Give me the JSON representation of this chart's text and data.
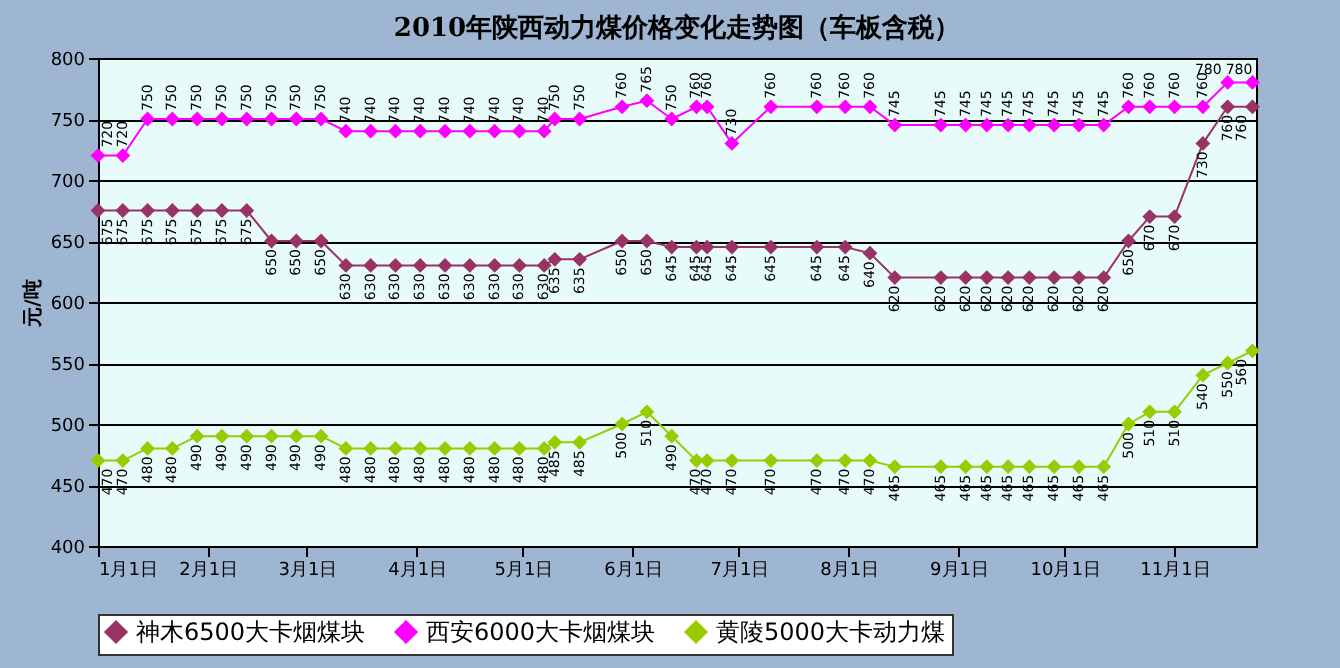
{
  "chart_data": {
    "type": "line",
    "title": "2010年陕西动力煤价格变化走势图（车板含税）",
    "ylabel": "元/吨",
    "x": [
      "2010-01-01",
      "2010-01-08",
      "2010-01-15",
      "2010-01-22",
      "2010-01-29",
      "2010-02-05",
      "2010-02-12",
      "2010-02-19",
      "2010-02-26",
      "2010-03-05",
      "2010-03-12",
      "2010-03-19",
      "2010-03-26",
      "2010-04-02",
      "2010-04-09",
      "2010-04-16",
      "2010-04-23",
      "2010-04-30",
      "2010-05-07",
      "2010-05-10",
      "2010-05-17",
      "2010-05-29",
      "2010-06-05",
      "2010-06-12",
      "2010-06-19",
      "2010-06-22",
      "2010-06-29",
      "2010-07-10",
      "2010-07-23",
      "2010-07-31",
      "2010-08-07",
      "2010-08-14",
      "2010-08-27",
      "2010-09-03",
      "2010-09-09",
      "2010-09-15",
      "2010-09-21",
      "2010-09-28",
      "2010-10-05",
      "2010-10-12",
      "2010-10-19",
      "2010-10-25",
      "2010-11-01",
      "2010-11-09",
      "2010-11-16",
      "2010-11-23"
    ],
    "series": [
      {
        "name": "神木6500大卡烟煤块",
        "color": "#993366",
        "values": [
          675,
          675,
          675,
          675,
          675,
          675,
          675,
          650,
          650,
          650,
          630,
          630,
          630,
          630,
          630,
          630,
          630,
          630,
          630,
          635,
          635,
          650,
          650,
          645,
          645,
          645,
          645,
          645,
          645,
          645,
          640,
          620,
          620,
          620,
          620,
          620,
          620,
          620,
          620,
          620,
          650,
          670,
          670,
          730,
          760,
          760
        ]
      },
      {
        "name": "西安6000大卡烟煤块",
        "color": "#ff00ff",
        "values": [
          720,
          720,
          750,
          750,
          750,
          750,
          750,
          750,
          750,
          750,
          740,
          740,
          740,
          740,
          740,
          740,
          740,
          740,
          740,
          750,
          750,
          760,
          765,
          750,
          760,
          760,
          730,
          760,
          760,
          760,
          760,
          745,
          745,
          745,
          745,
          745,
          745,
          745,
          745,
          745,
          760,
          760,
          760,
          760,
          780,
          780
        ]
      },
      {
        "name": "黄陵5000大卡动力煤",
        "color": "#99cc00",
        "values": [
          470,
          470,
          480,
          480,
          490,
          490,
          490,
          490,
          490,
          490,
          480,
          480,
          480,
          480,
          480,
          480,
          480,
          480,
          480,
          485,
          485,
          500,
          510,
          490,
          470,
          470,
          470,
          470,
          470,
          470,
          470,
          465,
          465,
          465,
          465,
          465,
          465,
          465,
          465,
          465,
          500,
          510,
          510,
          540,
          550,
          560
        ]
      }
    ],
    "xlim": [
      "2010-01-01",
      "2010-11-24"
    ],
    "xticks": [
      {
        "value": "2010-01-01",
        "label": "1月1日"
      },
      {
        "value": "2010-02-01",
        "label": "2月1日"
      },
      {
        "value": "2010-03-01",
        "label": "3月1日"
      },
      {
        "value": "2010-04-01",
        "label": "4月1日"
      },
      {
        "value": "2010-05-01",
        "label": "5月1日"
      },
      {
        "value": "2010-06-01",
        "label": "6月1日"
      },
      {
        "value": "2010-07-01",
        "label": "7月1日"
      },
      {
        "value": "2010-08-01",
        "label": "8月1日"
      },
      {
        "value": "2010-09-01",
        "label": "9月1日"
      },
      {
        "value": "2010-10-01",
        "label": "10月1日"
      },
      {
        "value": "2010-11-01",
        "label": "11月1日"
      }
    ],
    "ylim": [
      400,
      800
    ],
    "yticks": [
      400,
      450,
      500,
      550,
      600,
      650,
      700,
      750,
      800
    ],
    "grid": "y",
    "legend": "bottom",
    "marker": "diamond",
    "line_style": "solid",
    "data_labels": true
  }
}
